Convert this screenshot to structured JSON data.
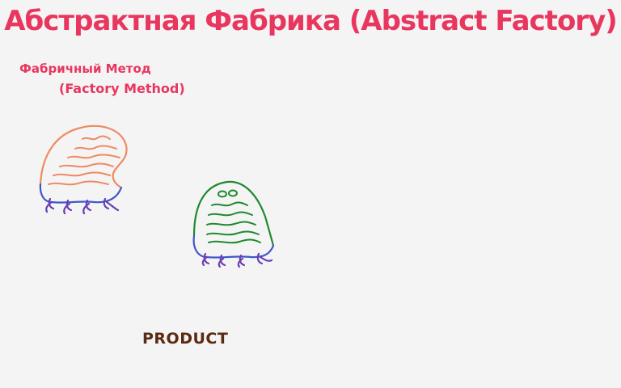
{
  "diagram": {
    "title": "Абстрактная Фабрика (Abstract Factory)",
    "factory_method_label_ru": "Фабричный Метод",
    "factory_method_label_en": "(Factory Method)",
    "product_label": "PRODUCT"
  },
  "colors": {
    "title": "#e8365f",
    "factory_body": "#ee8a63",
    "product_body": "#1f8a2e",
    "base_line": "#3f57c8",
    "legs": "#6a3fb5",
    "product_text": "#5a2a12"
  }
}
